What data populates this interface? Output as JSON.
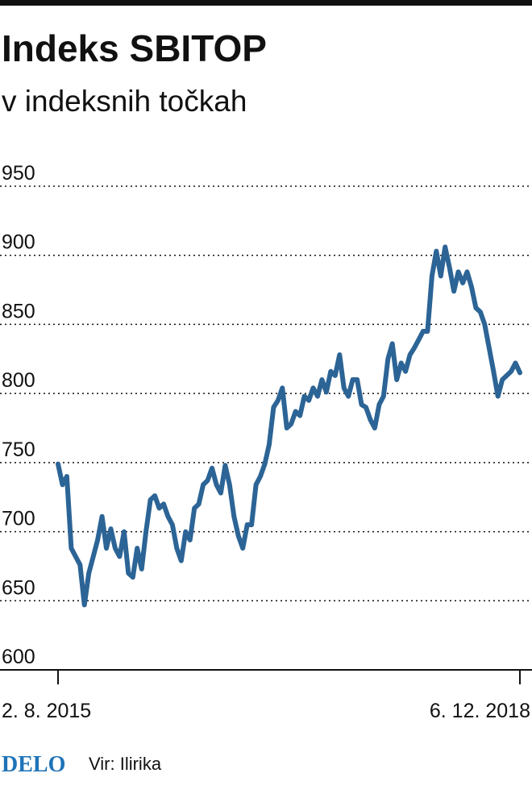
{
  "chart_data": {
    "type": "line",
    "title": "Indeks SBITOP",
    "subtitle": "v indeksnih točkah",
    "categories": [
      "2. 8. 2015",
      null,
      null,
      null,
      null,
      null,
      null,
      null,
      null,
      null,
      null,
      null,
      null,
      null,
      null,
      null,
      null,
      null,
      null,
      null,
      null,
      null,
      null,
      null,
      null,
      null,
      null,
      null,
      null,
      null,
      null,
      null,
      null,
      null,
      null,
      null,
      null,
      null,
      null,
      null,
      null,
      null,
      null,
      null,
      null,
      null,
      null,
      null,
      null,
      null,
      null,
      null,
      null,
      null,
      null,
      null,
      null,
      null,
      null,
      null,
      null,
      null,
      null,
      null,
      null,
      null,
      null,
      null,
      null,
      null,
      null,
      null,
      null,
      null,
      null,
      null,
      null,
      null,
      null,
      null,
      null,
      null,
      null,
      null,
      null,
      null,
      null,
      null,
      null,
      null,
      null,
      null,
      null,
      null,
      null,
      null,
      null,
      null,
      null,
      null,
      null,
      null,
      null,
      null,
      null,
      "6. 12. 2018"
    ],
    "values": [
      749,
      734,
      740,
      688,
      682,
      676,
      647,
      670,
      682,
      694,
      711,
      688,
      702,
      688,
      682,
      700,
      670,
      667,
      688,
      673,
      700,
      723,
      726,
      717,
      720,
      711,
      705,
      688,
      679,
      700,
      694,
      717,
      720,
      734,
      737,
      746,
      734,
      728,
      748,
      734,
      711,
      697,
      688,
      705,
      705,
      734,
      740,
      749,
      763,
      790,
      795,
      804,
      775,
      778,
      787,
      784,
      798,
      795,
      804,
      798,
      810,
      801,
      816,
      813,
      828,
      804,
      798,
      810,
      810,
      792,
      790,
      781,
      775,
      792,
      798,
      825,
      836,
      810,
      822,
      816,
      828,
      833,
      839,
      845,
      845,
      885,
      903,
      885,
      906,
      891,
      874,
      888,
      880,
      888,
      877,
      862,
      859,
      850,
      833,
      816,
      798,
      810,
      813,
      816,
      822,
      815
    ],
    "color": "#2c6496",
    "ylim": [
      600,
      950
    ],
    "yticks": [
      600,
      650,
      700,
      750,
      800,
      850,
      900,
      950
    ],
    "grid": true,
    "logo": "DELO",
    "source": "Vir: Ilirika"
  }
}
